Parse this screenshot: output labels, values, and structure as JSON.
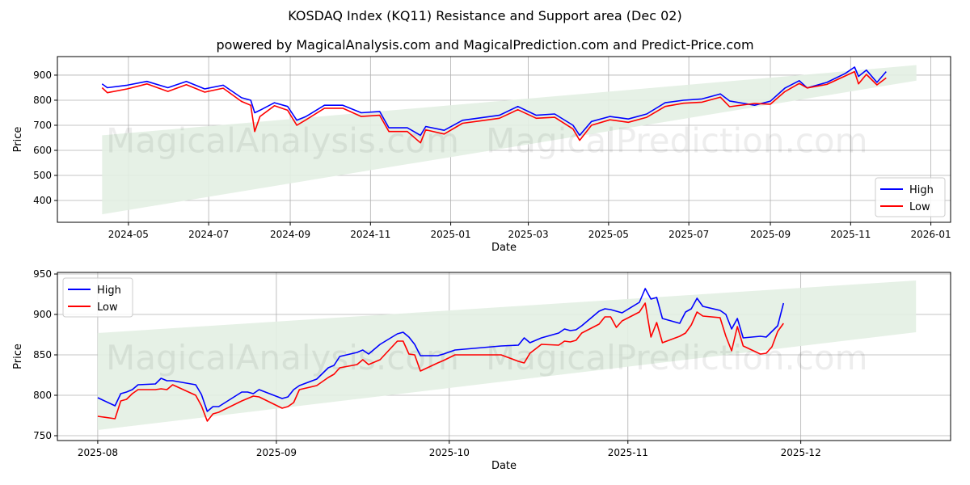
{
  "title": "KOSDAQ Index (KQ11) Resistance and Support area (Dec 02)",
  "subtitle": "powered by MagicalAnalysis.com and MagicalPrediction.com and Predict-Price.com",
  "watermarks": [
    "MagicalAnalysis.com",
    "MagicalPrediction.com"
  ],
  "colors": {
    "high": "#0000ff",
    "low": "#ff0000",
    "band": "#e3f0e3",
    "grid": "#b0b0b0"
  },
  "chart_data": [
    {
      "type": "line",
      "name": "full-period",
      "xlabel": "Date",
      "ylabel": "Price",
      "xlim": [
        "2024-03-08",
        "2026-01-16"
      ],
      "ylim": [
        313,
        974
      ],
      "xticks": [
        "2024-05",
        "2024-07",
        "2024-09",
        "2024-11",
        "2025-01",
        "2025-03",
        "2025-05",
        "2025-07",
        "2025-09",
        "2025-11",
        "2026-01"
      ],
      "yticks": [
        400,
        500,
        600,
        700,
        800,
        900
      ],
      "grid": true,
      "legend": {
        "position": "lower-right",
        "entries": [
          "High",
          "Low"
        ]
      },
      "band": {
        "start": "2024-04-11",
        "end": "2025-12-21",
        "top": [
          660,
          940
        ],
        "bottom": [
          345,
          878
        ]
      },
      "x": [
        "2024-04-11",
        "2024-04-15",
        "2024-04-30",
        "2024-05-15",
        "2024-05-31",
        "2024-06-14",
        "2024-06-28",
        "2024-07-12",
        "2024-07-26",
        "2024-08-02",
        "2024-08-05",
        "2024-08-09",
        "2024-08-20",
        "2024-08-30",
        "2024-09-06",
        "2024-09-13",
        "2024-09-27",
        "2024-10-11",
        "2024-10-25",
        "2024-11-08",
        "2024-11-15",
        "2024-11-29",
        "2024-12-09",
        "2024-12-13",
        "2024-12-27",
        "2025-01-10",
        "2025-01-24",
        "2025-02-07",
        "2025-02-21",
        "2025-03-07",
        "2025-03-21",
        "2025-04-04",
        "2025-04-09",
        "2025-04-18",
        "2025-05-02",
        "2025-05-16",
        "2025-05-30",
        "2025-06-13",
        "2025-06-27",
        "2025-07-11",
        "2025-07-25",
        "2025-08-01",
        "2025-08-20",
        "2025-09-01",
        "2025-09-12",
        "2025-09-23",
        "2025-09-29",
        "2025-10-14",
        "2025-10-28",
        "2025-11-04",
        "2025-11-07",
        "2025-11-13",
        "2025-11-21",
        "2025-11-28"
      ],
      "series": [
        {
          "name": "High",
          "values": [
            865,
            850,
            860,
            875,
            850,
            875,
            845,
            860,
            810,
            800,
            750,
            760,
            790,
            775,
            720,
            735,
            780,
            780,
            750,
            755,
            690,
            690,
            660,
            695,
            680,
            720,
            730,
            740,
            775,
            740,
            745,
            700,
            660,
            715,
            735,
            725,
            745,
            790,
            800,
            805,
            825,
            797,
            780,
            796,
            848,
            878,
            849,
            871,
            907,
            932,
            895,
            920,
            871,
            914
          ]
        },
        {
          "name": "Low",
          "values": [
            850,
            830,
            845,
            865,
            835,
            862,
            832,
            848,
            795,
            780,
            675,
            735,
            778,
            760,
            700,
            722,
            768,
            768,
            735,
            740,
            675,
            675,
            630,
            682,
            665,
            708,
            718,
            728,
            762,
            728,
            732,
            685,
            640,
            700,
            722,
            712,
            732,
            775,
            788,
            792,
            812,
            774,
            787,
            784,
            834,
            867,
            849,
            863,
            897,
            914,
            865,
            903,
            861,
            889
          ]
        }
      ]
    },
    {
      "type": "line",
      "name": "recent-period",
      "xlabel": "Date",
      "ylabel": "Price",
      "xlim": [
        "2025-07-25",
        "2025-12-27"
      ],
      "ylim": [
        744,
        952
      ],
      "xticks": [
        "2025-08",
        "2025-09",
        "2025-10",
        "2025-11",
        "2025-12"
      ],
      "yticks": [
        750,
        800,
        850,
        900,
        950
      ],
      "grid": true,
      "legend": {
        "position": "upper-left",
        "entries": [
          "High",
          "Low"
        ]
      },
      "band": {
        "start": "2025-08-01",
        "end": "2025-12-21",
        "top": [
          877,
          942
        ],
        "bottom": [
          757,
          878
        ]
      },
      "x": [
        "2025-08-01",
        "2025-08-04",
        "2025-08-05",
        "2025-08-06",
        "2025-08-07",
        "2025-08-08",
        "2025-08-11",
        "2025-08-12",
        "2025-08-13",
        "2025-08-14",
        "2025-08-18",
        "2025-08-19",
        "2025-08-20",
        "2025-08-21",
        "2025-08-22",
        "2025-08-26",
        "2025-08-27",
        "2025-08-28",
        "2025-08-29",
        "2025-09-02",
        "2025-09-03",
        "2025-09-04",
        "2025-09-05",
        "2025-09-08",
        "2025-09-10",
        "2025-09-11",
        "2025-09-12",
        "2025-09-15",
        "2025-09-16",
        "2025-09-17",
        "2025-09-19",
        "2025-09-22",
        "2025-09-23",
        "2025-09-24",
        "2025-09-25",
        "2025-09-26",
        "2025-09-29",
        "2025-09-30",
        "2025-10-02",
        "2025-10-10",
        "2025-10-13",
        "2025-10-14",
        "2025-10-15",
        "2025-10-17",
        "2025-10-20",
        "2025-10-21",
        "2025-10-22",
        "2025-10-23",
        "2025-10-24",
        "2025-10-27",
        "2025-10-28",
        "2025-10-29",
        "2025-10-30",
        "2025-10-31",
        "2025-11-03",
        "2025-11-04",
        "2025-11-05",
        "2025-11-06",
        "2025-11-07",
        "2025-11-10",
        "2025-11-11",
        "2025-11-12",
        "2025-11-13",
        "2025-11-14",
        "2025-11-17",
        "2025-11-18",
        "2025-11-19",
        "2025-11-20",
        "2025-11-21",
        "2025-11-24",
        "2025-11-25",
        "2025-11-26",
        "2025-11-27",
        "2025-11-28"
      ],
      "series": [
        {
          "name": "High",
          "values": [
            797,
            787,
            802,
            804,
            807,
            813,
            814,
            821,
            818,
            818,
            813,
            801,
            780,
            786,
            786,
            804,
            804,
            802,
            807,
            796,
            798,
            807,
            812,
            820,
            834,
            837,
            848,
            853,
            856,
            851,
            863,
            876,
            878,
            872,
            863,
            849,
            849,
            851,
            856,
            861,
            862,
            871,
            865,
            871,
            877,
            882,
            880,
            881,
            886,
            904,
            907,
            906,
            904,
            902,
            915,
            932,
            919,
            921,
            895,
            889,
            903,
            907,
            920,
            910,
            905,
            900,
            882,
            895,
            871,
            873,
            872,
            879,
            886,
            914
          ]
        },
        {
          "name": "Low",
          "values": [
            774,
            771,
            793,
            795,
            802,
            807,
            807,
            808,
            807,
            813,
            800,
            787,
            768,
            777,
            779,
            793,
            796,
            799,
            798,
            784,
            786,
            791,
            807,
            812,
            822,
            826,
            834,
            838,
            844,
            838,
            844,
            867,
            867,
            851,
            850,
            830,
            840,
            843,
            850,
            850,
            842,
            840,
            852,
            863,
            862,
            867,
            866,
            868,
            877,
            888,
            897,
            897,
            884,
            892,
            903,
            914,
            872,
            890,
            865,
            873,
            877,
            887,
            903,
            898,
            896,
            873,
            855,
            885,
            861,
            851,
            852,
            860,
            879,
            889
          ]
        }
      ]
    }
  ]
}
